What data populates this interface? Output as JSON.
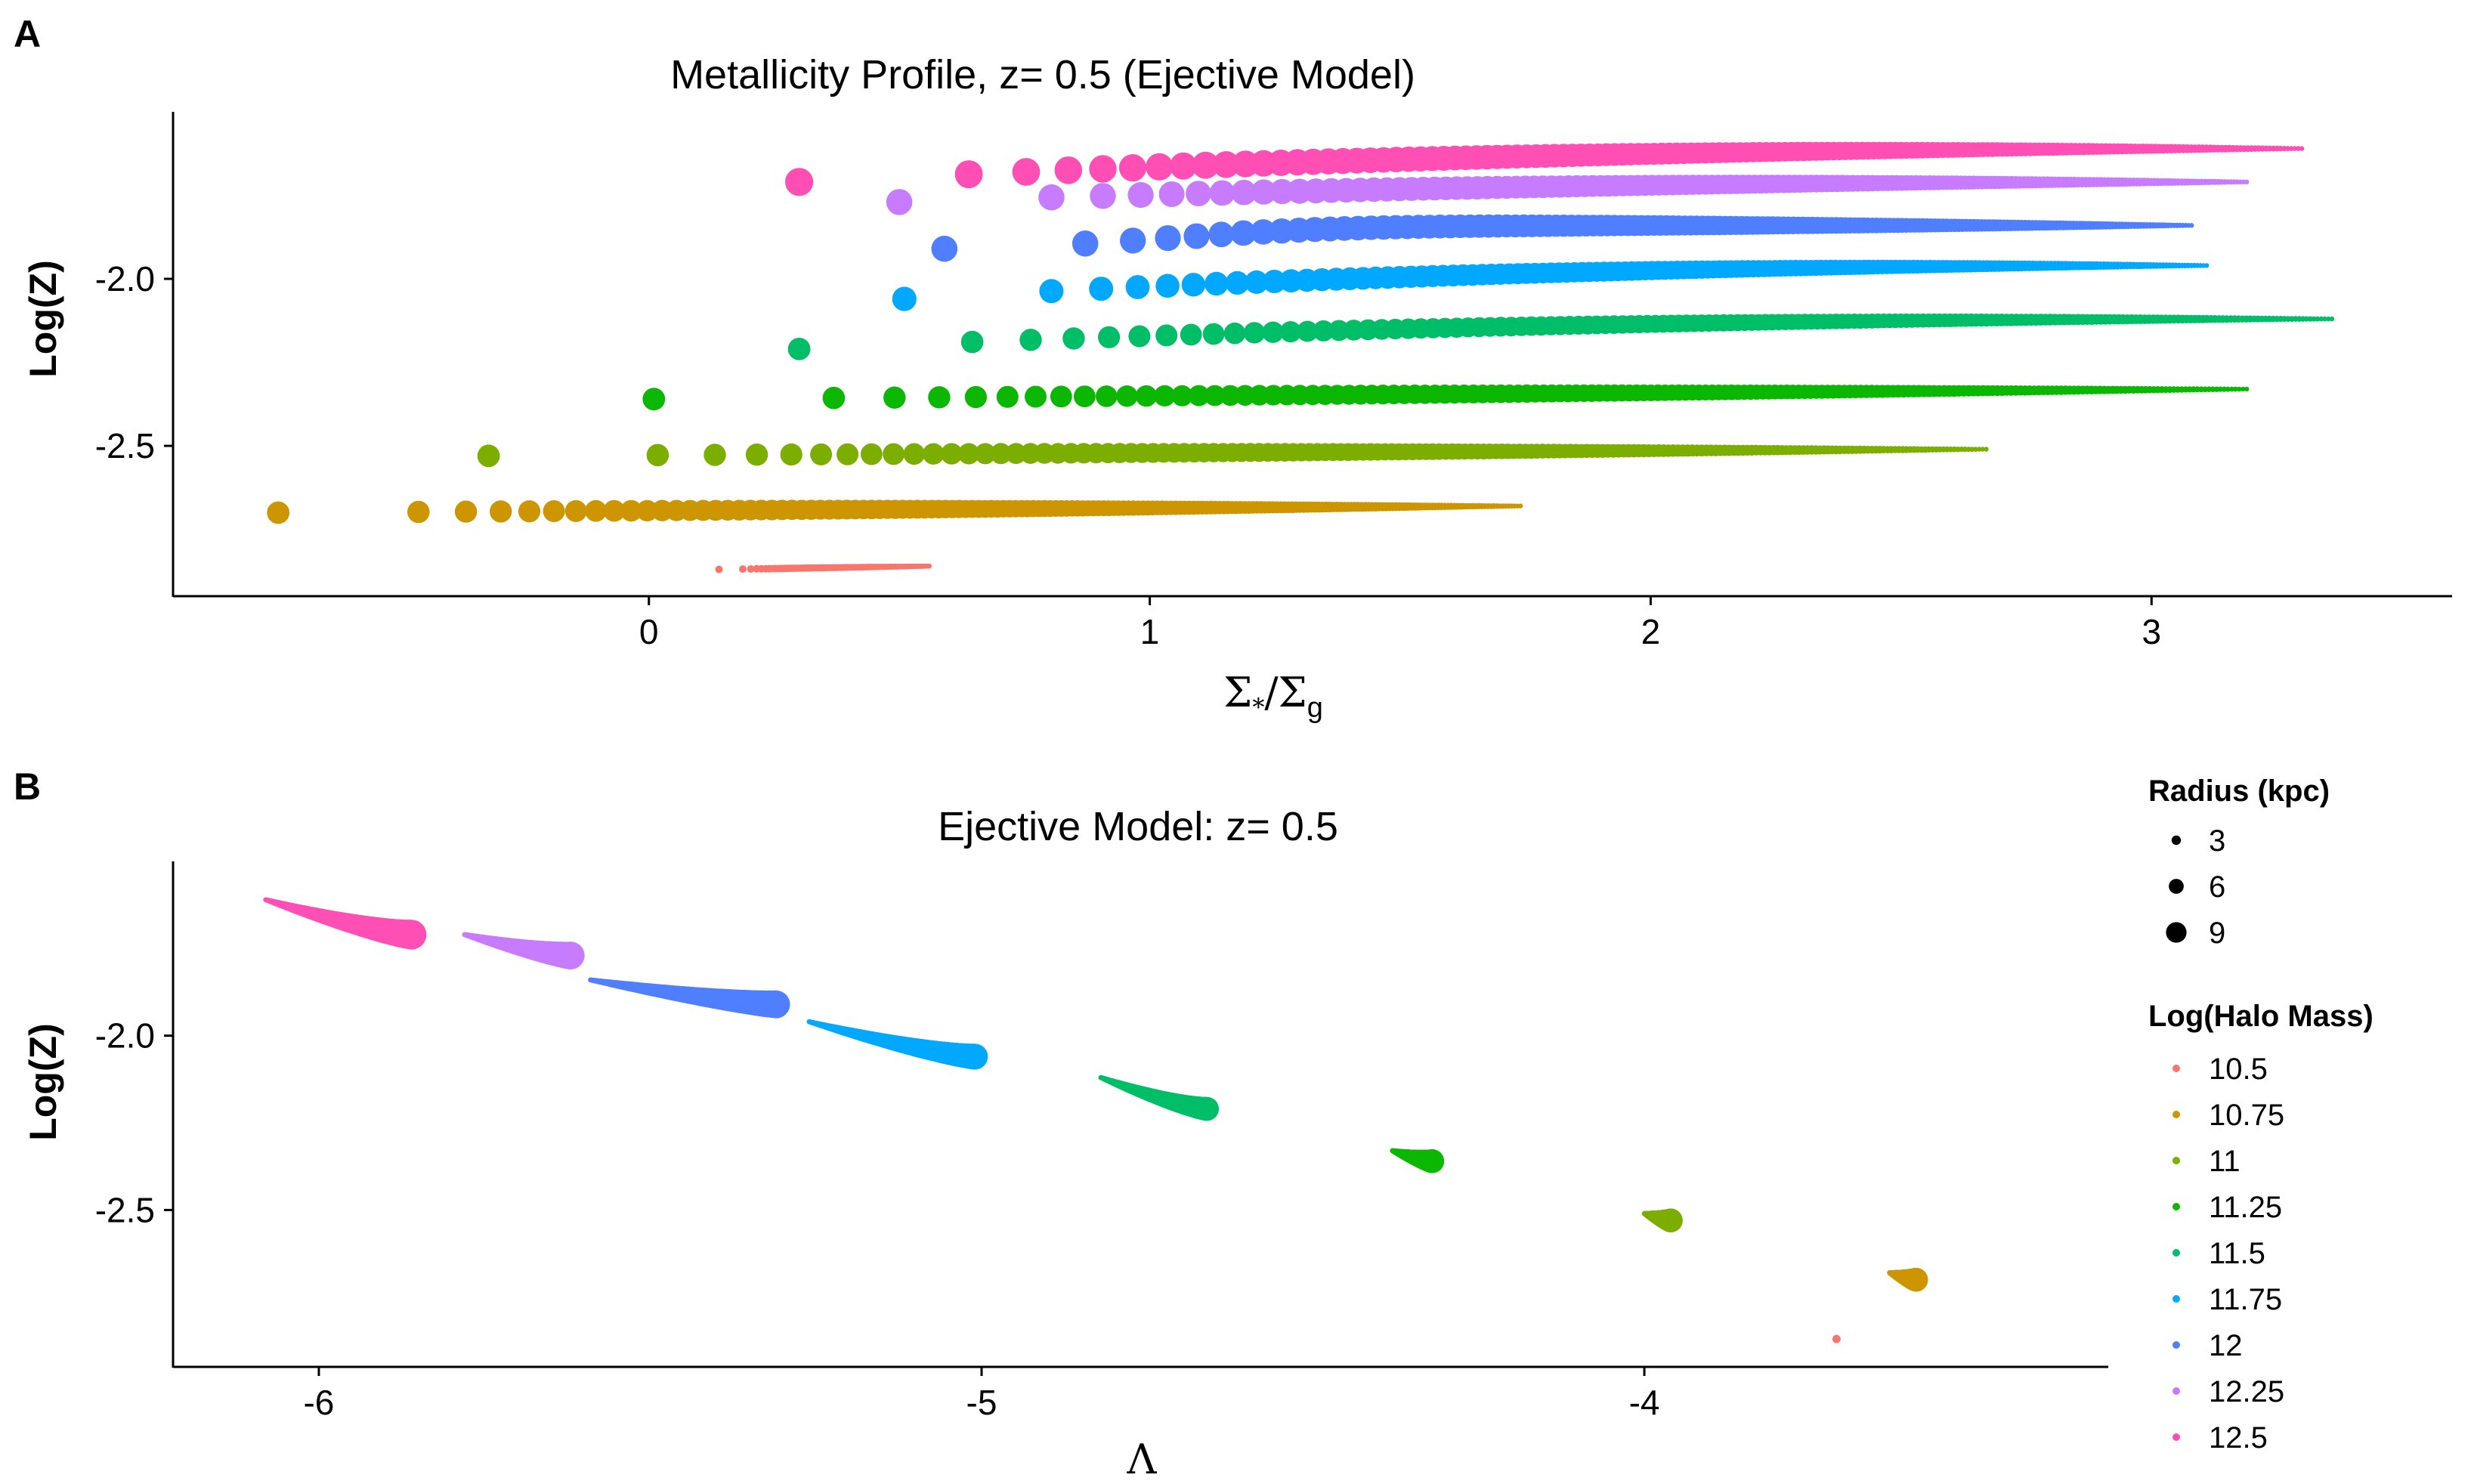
{
  "panels": {
    "A": {
      "letter": "A",
      "title": "Metallicity Profile, z= 0.5 (Ejective Model)",
      "ylabel": "Log(Z)",
      "xlabel": "Σ*/Σg",
      "xticks": [
        0,
        1,
        2,
        3
      ],
      "yticks": [
        -2.0,
        -2.5
      ],
      "ytick_labels": [
        "-2.0",
        "-2.5"
      ],
      "xlim": [
        -0.95,
        3.6
      ],
      "ylim": [
        -2.95,
        -1.5
      ]
    },
    "B": {
      "letter": "B",
      "title": "Ejective Model: z= 0.5",
      "ylabel": "Log(Z)",
      "xlabel": "Λ",
      "xticks": [
        -6,
        -5,
        -4
      ],
      "yticks": [
        -2.0,
        -2.5
      ],
      "ytick_labels": [
        "-2.0",
        "-2.5"
      ],
      "xlim": [
        -6.22,
        -3.3
      ],
      "ylim": [
        -2.95,
        -1.5
      ]
    }
  },
  "legend": {
    "radius_title": "Radius (kpc)",
    "radius_items": [
      {
        "label": "3",
        "value": 3
      },
      {
        "label": "6",
        "value": 6
      },
      {
        "label": "9",
        "value": 9
      }
    ],
    "mass_title": "Log(Halo Mass)",
    "mass_items": [
      {
        "label": "10.5",
        "color": "#F8766D"
      },
      {
        "label": "10.75",
        "color": "#CD9600"
      },
      {
        "label": "11",
        "color": "#7CAE00"
      },
      {
        "label": "11.25",
        "color": "#0CB702"
      },
      {
        "label": "11.5",
        "color": "#00BE67"
      },
      {
        "label": "11.75",
        "color": "#00A9FF"
      },
      {
        "label": "12",
        "color": "#4F7FFF"
      },
      {
        "label": "12.25",
        "color": "#C77CFF"
      },
      {
        "label": "12.5",
        "color": "#FF4FB5"
      }
    ]
  },
  "chart_data": [
    {
      "type": "scatter",
      "panel": "A",
      "title": "Metallicity Profile, z= 0.5 (Ejective Model)",
      "xlabel": "Σ*/Σg",
      "ylabel": "Log(Z)",
      "xlim": [
        -0.95,
        3.6
      ],
      "ylim": [
        -2.95,
        -1.5
      ],
      "size_variable": "Radius (kpc)",
      "color_variable": "Log(Halo Mass)",
      "series": [
        {
          "name": "10.5",
          "color": "#F8766D",
          "x": [
            0.14,
            0.56
          ],
          "y": [
            -2.87,
            -2.86
          ],
          "r_range": [
            0.5,
            2.0
          ],
          "rise": [
            0.0,
            1.0
          ],
          "shape": "straight"
        },
        {
          "name": "10.75",
          "color": "#CD9600",
          "x": [
            -0.74,
            1.74
          ],
          "y": [
            -2.7,
            -2.68
          ],
          "r_range": [
            0.5,
            10.0
          ],
          "rise": [
            0.0,
            1.0
          ],
          "shape": "straight"
        },
        {
          "name": "11",
          "color": "#7CAE00",
          "x": [
            -0.32,
            2.67
          ],
          "y": [
            -2.53,
            -2.51
          ],
          "r_range": [
            0.5,
            10.0
          ],
          "rise": [
            0.0,
            1.0
          ],
          "shape": "straight"
        },
        {
          "name": "11.25",
          "color": "#0CB702",
          "x": [
            0.01,
            3.19
          ],
          "y": [
            -2.36,
            -2.33
          ],
          "r_range": [
            0.5,
            10.0
          ],
          "rise": [
            0.0,
            1.0
          ],
          "shape": "straight"
        },
        {
          "name": "11.5",
          "color": "#00BE67",
          "x": [
            0.3,
            3.36
          ],
          "y": [
            -2.21,
            -2.12
          ],
          "r_range": [
            0.5,
            10.0
          ],
          "rise": [
            0.0,
            1.0
          ],
          "shape": "concave"
        },
        {
          "name": "11.75",
          "color": "#00A9FF",
          "x": [
            0.51,
            3.11
          ],
          "y": [
            -2.06,
            -1.96
          ],
          "r_range": [
            0.5,
            11.0
          ],
          "rise": [
            0.0,
            1.0
          ],
          "shape": "concave"
        },
        {
          "name": "12",
          "color": "#4F7FFF",
          "x": [
            0.59,
            3.08
          ],
          "y": [
            -1.91,
            -1.84
          ],
          "r_range": [
            0.5,
            12.0
          ],
          "rise": [
            0.0,
            1.0
          ],
          "shape": "sigmoid"
        },
        {
          "name": "12.25",
          "color": "#C77CFF",
          "x": [
            0.5,
            3.19
          ],
          "y": [
            -1.77,
            -1.71
          ],
          "r_range": [
            0.5,
            12.0
          ],
          "rise": [
            0.0,
            1.0
          ],
          "shape": "concave"
        },
        {
          "name": "12.5",
          "color": "#FF4FB5",
          "x": [
            0.3,
            3.3
          ],
          "y": [
            -1.71,
            -1.61
          ],
          "r_range": [
            0.5,
            13.0
          ],
          "rise": [
            0.0,
            1.0
          ],
          "shape": "concave"
        }
      ]
    },
    {
      "type": "scatter",
      "panel": "B",
      "title": "Ejective Model: z= 0.5",
      "xlabel": "Λ",
      "ylabel": "Log(Z)",
      "xlim": [
        -6.22,
        -3.3
      ],
      "ylim": [
        -2.95,
        -1.5
      ],
      "size_variable": "Radius (kpc)",
      "color_variable": "Log(Halo Mass)",
      "series": [
        {
          "name": "10.5",
          "color": "#F8766D",
          "x": [
            -3.71,
            -3.71
          ],
          "y": [
            -2.87,
            -2.87
          ],
          "r_range": [
            0.5,
            2.0
          ]
        },
        {
          "name": "10.75",
          "color": "#CD9600",
          "x": [
            -3.63,
            -3.59
          ],
          "y": [
            -2.68,
            -2.7
          ],
          "r_range": [
            0.5,
            10.0
          ]
        },
        {
          "name": "11",
          "color": "#7CAE00",
          "x": [
            -4.0,
            -3.96
          ],
          "y": [
            -2.51,
            -2.53
          ],
          "r_range": [
            0.5,
            10.0
          ]
        },
        {
          "name": "11.25",
          "color": "#0CB702",
          "x": [
            -4.38,
            -4.32
          ],
          "y": [
            -2.33,
            -2.36
          ],
          "r_range": [
            0.5,
            10.0
          ]
        },
        {
          "name": "11.5",
          "color": "#00BE67",
          "x": [
            -4.82,
            -4.66
          ],
          "y": [
            -2.12,
            -2.21
          ],
          "r_range": [
            0.5,
            10.0
          ]
        },
        {
          "name": "11.75",
          "color": "#00A9FF",
          "x": [
            -5.26,
            -5.01
          ],
          "y": [
            -1.96,
            -2.06
          ],
          "r_range": [
            0.5,
            11.0
          ]
        },
        {
          "name": "12",
          "color": "#4F7FFF",
          "x": [
            -5.59,
            -5.31
          ],
          "y": [
            -1.84,
            -1.91
          ],
          "r_range": [
            0.5,
            12.0
          ]
        },
        {
          "name": "12.25",
          "color": "#C77CFF",
          "x": [
            -5.78,
            -5.62
          ],
          "y": [
            -1.71,
            -1.77
          ],
          "r_range": [
            0.5,
            12.0
          ]
        },
        {
          "name": "12.5",
          "color": "#FF4FB5",
          "x": [
            -6.08,
            -5.86
          ],
          "y": [
            -1.61,
            -1.71
          ],
          "r_range": [
            0.5,
            13.0
          ]
        }
      ]
    }
  ]
}
